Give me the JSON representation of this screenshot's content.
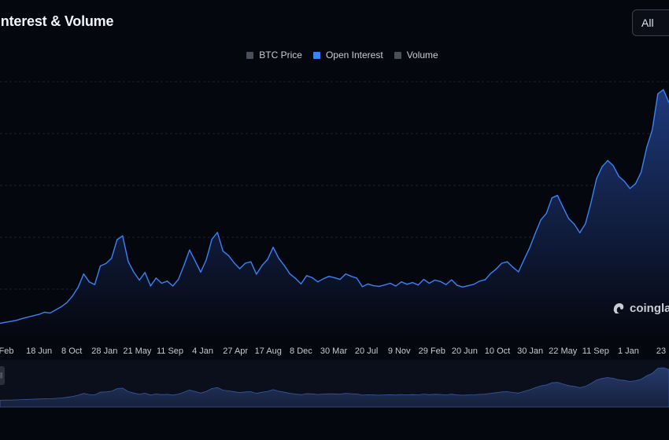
{
  "header": {
    "title": "Interest & Volume",
    "range_select": "All"
  },
  "legend": [
    {
      "label": "BTC Price",
      "color": "#4a4e58",
      "active": false
    },
    {
      "label": "Open Interest",
      "color": "#3b82f6",
      "active": true
    },
    {
      "label": "Volume",
      "color": "#4a4e58",
      "active": false
    }
  ],
  "watermark": {
    "text": "coingla"
  },
  "colors": {
    "background": "#05070f",
    "line": "#3b82f6",
    "area_top": "#1f3c80",
    "area_bottom": "#05070f",
    "grid": "#1c2130"
  },
  "chart_data": {
    "type": "area",
    "series": [
      {
        "name": "Open Interest"
      }
    ],
    "x_tick_labels": [
      "Feb",
      "18 Jun",
      "8 Oct",
      "28 Jan",
      "21 May",
      "11 Sep",
      "4 Jan",
      "27 Apr",
      "17 Aug",
      "8 Dec",
      "30 Mar",
      "20 Jul",
      "9 Nov",
      "29 Feb",
      "20 Jun",
      "10 Oct",
      "30 Jan",
      "22 May",
      "11 Sep",
      "1 Jan",
      "23"
    ],
    "y_gridlines": 5,
    "y_tick_labels": [],
    "x": [
      0,
      1,
      2,
      3,
      4,
      5,
      6,
      7,
      8,
      9,
      10,
      11,
      12,
      13,
      14,
      15,
      16,
      17,
      18,
      19,
      20,
      21,
      22,
      23,
      24,
      25,
      26,
      27,
      28,
      29,
      30,
      31,
      32,
      33,
      34,
      35,
      36,
      37,
      38,
      39,
      40,
      41,
      42,
      43,
      44,
      45,
      46,
      47,
      48,
      49,
      50,
      51,
      52,
      53,
      54,
      55,
      56,
      57,
      58,
      59,
      60,
      61,
      62,
      63,
      64,
      65,
      66,
      67,
      68,
      69,
      70,
      71,
      72,
      73,
      74,
      75,
      76,
      77,
      78,
      79,
      80,
      81,
      82,
      83,
      84,
      85,
      86,
      87,
      88,
      89,
      90,
      91,
      92,
      93,
      94,
      95,
      96,
      97,
      98,
      99,
      100,
      101,
      102,
      103,
      104,
      105,
      106,
      107,
      108,
      109,
      110,
      111,
      112,
      113,
      114,
      115,
      116,
      117,
      118,
      119,
      120
    ],
    "values": [
      4.2,
      4.5,
      4.8,
      5.1,
      5.6,
      6.0,
      6.4,
      6.8,
      7.4,
      7.2,
      8.1,
      9.0,
      10.2,
      12.1,
      14.6,
      18.5,
      16.2,
      15.4,
      20.8,
      21.5,
      23.0,
      28.4,
      29.5,
      22.1,
      19.0,
      16.7,
      18.9,
      15.0,
      17.3,
      15.8,
      16.4,
      15.0,
      16.9,
      21.0,
      25.4,
      22.3,
      19.0,
      22.6,
      28.5,
      30.5,
      25.1,
      23.8,
      21.7,
      20.0,
      21.6,
      22.0,
      18.4,
      20.9,
      22.7,
      26.2,
      23.0,
      20.9,
      18.5,
      17.2,
      15.6,
      18.0,
      17.4,
      16.2,
      17.1,
      17.8,
      17.4,
      16.9,
      18.5,
      17.8,
      17.3,
      14.8,
      15.6,
      15.1,
      14.9,
      15.3,
      15.8,
      15.0,
      16.2,
      15.5,
      16.0,
      15.3,
      16.9,
      15.8,
      16.7,
      16.3,
      15.4,
      16.8,
      15.2,
      14.7,
      15.1,
      15.5,
      16.4,
      16.8,
      18.6,
      19.9,
      21.6,
      22.0,
      20.4,
      19.1,
      22.6,
      26.0,
      30.2,
      34.1,
      36.0,
      40.5,
      41.2,
      37.8,
      34.5,
      32.9,
      30.4,
      33.0,
      39.0,
      46.0,
      49.5,
      51.3,
      49.8,
      46.7,
      45.3,
      43.2,
      44.6,
      47.9,
      55.1,
      60.2,
      70.6,
      71.8,
      68.0
    ]
  }
}
